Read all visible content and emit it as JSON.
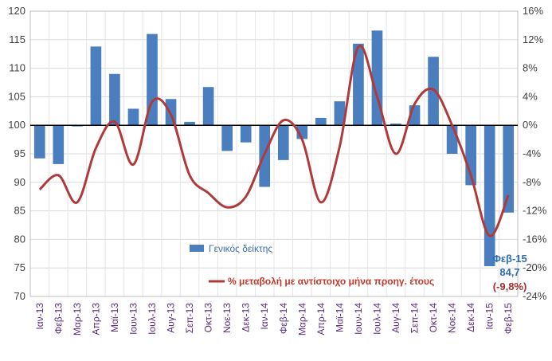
{
  "chart_data": {
    "type": "bar+line",
    "categories": [
      "Ιαν-13",
      "Φεβ-13",
      "Μαρ-13",
      "Απρ-13",
      "Μαϊ-13",
      "Ιουν-13",
      "Ιουλ-13",
      "Αυγ-13",
      "Σεπ-13",
      "Οκτ-13",
      "Νοε-13",
      "Δεκ-13",
      "Ιαν-14",
      "Φεβ-14",
      "Μαρ-14",
      "Απρ-14",
      "Μαϊ-14",
      "Ιουν-14",
      "Ιουλ-14",
      "Αυγ-14",
      "Σεπ-14",
      "Οκτ-14",
      "Νοε-14",
      "Δεκ-14",
      "Ιαν-15",
      "Φεβ-15"
    ],
    "series": [
      {
        "name": "Γενικός δείκτης",
        "kind": "bar",
        "axis": "left",
        "color": "#4a7ebf",
        "values": [
          94.2,
          93.2,
          99.8,
          113.8,
          109.0,
          102.9,
          116.0,
          104.6,
          100.6,
          106.7,
          95.5,
          97.0,
          89.2,
          93.9,
          97.6,
          101.3,
          104.2,
          114.3,
          116.6,
          100.3,
          103.5,
          112.0,
          95.0,
          89.5,
          75.3,
          84.7
        ]
      },
      {
        "name": "% μεταβολή με αντίστοιχο μήνα προηγ. έτους",
        "kind": "line",
        "axis": "right",
        "color": "#b03a3a",
        "values": [
          -9.0,
          -7.0,
          -10.8,
          -3.2,
          0.5,
          -5.5,
          3.3,
          1.5,
          -7.0,
          -9.5,
          -11.5,
          -10.0,
          -4.0,
          0.7,
          -2.0,
          -10.8,
          -3.0,
          11.0,
          4.0,
          -4.0,
          3.0,
          5.0,
          0.0,
          -7.0,
          -15.5,
          -9.8
        ]
      }
    ],
    "y_left": {
      "min": 70,
      "max": 120,
      "ticks": [
        "70",
        "75",
        "80",
        "85",
        "90",
        "95",
        "100",
        "105",
        "110",
        "115",
        "120"
      ]
    },
    "y_right": {
      "min": -24,
      "max": 16,
      "ticks": [
        "-24%",
        "-20%",
        "-16%",
        "-12%",
        "-8%",
        "-4%",
        "0%",
        "4%",
        "8%",
        "12%",
        "16%"
      ]
    },
    "baseline": 100,
    "annotation": {
      "lines": [
        "Φεβ-15",
        "84,7",
        "(-9,8%)"
      ]
    },
    "legend": [
      "Γενικός δείκτης",
      "% μεταβολή με αντίστοιχο μήνα προηγ. έτους"
    ]
  }
}
